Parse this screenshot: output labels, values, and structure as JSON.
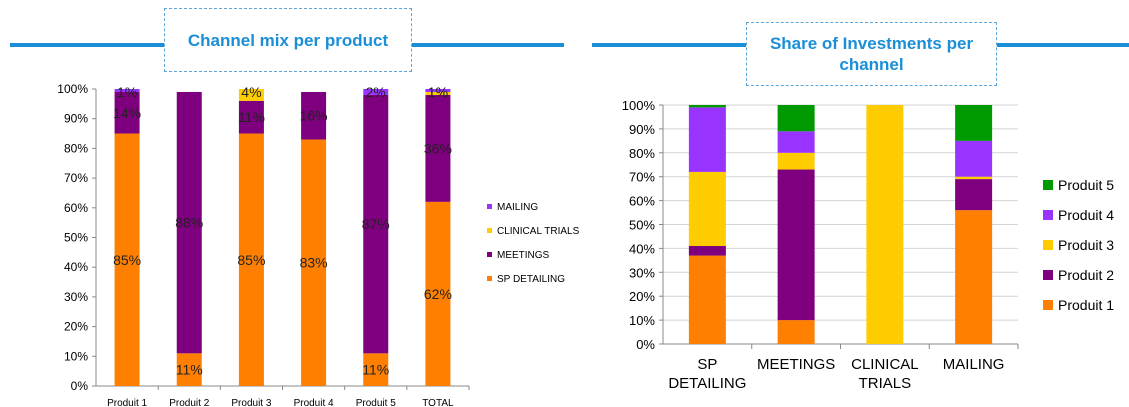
{
  "chart_data": [
    {
      "type": "bar",
      "stacked": true,
      "title": "Channel mix per product",
      "categories": [
        "Produit 1",
        "Produit 2",
        "Produit 3",
        "Produit 4",
        "Produit 5",
        "TOTAL"
      ],
      "ylim": [
        0,
        100
      ],
      "yticks": [
        "0%",
        "10%",
        "20%",
        "30%",
        "40%",
        "50%",
        "60%",
        "70%",
        "80%",
        "90%",
        "100%"
      ],
      "legend_position": "right",
      "grid": false,
      "series": [
        {
          "name": "SP DETAILING",
          "color": "#ff8000",
          "values": [
            85,
            11,
            85,
            83,
            11,
            62
          ],
          "labels": [
            "85%",
            "11%",
            "85%",
            "83%",
            "11%",
            "62%"
          ]
        },
        {
          "name": "MEETINGS",
          "color": "#7f007f",
          "values": [
            14,
            88,
            11,
            16,
            87,
            36
          ],
          "labels": [
            "14%",
            "88%",
            "11%",
            "16%",
            "87%",
            "36%"
          ]
        },
        {
          "name": "CLINICAL TRIALS",
          "color": "#ffcc00",
          "values": [
            0,
            0,
            4,
            0,
            0,
            1
          ],
          "labels": [
            "",
            "",
            "4%",
            "",
            "",
            "1%"
          ]
        },
        {
          "name": "MAILING",
          "color": "#9933ff",
          "values": [
            1,
            0,
            0,
            0,
            2,
            1
          ],
          "labels": [
            "1%",
            "",
            "",
            "",
            "2%",
            "1%"
          ]
        }
      ]
    },
    {
      "type": "bar",
      "stacked": true,
      "title": "Share of Investments per channel",
      "categories": [
        "SP DETAILING",
        "MEETINGS",
        "CLINICAL TRIALS",
        "MAILING"
      ],
      "ylim": [
        0,
        100
      ],
      "yticks": [
        "0%",
        "10%",
        "20%",
        "30%",
        "40%",
        "50%",
        "60%",
        "70%",
        "80%",
        "90%",
        "100%"
      ],
      "legend_position": "right",
      "grid": true,
      "series": [
        {
          "name": "Produit 1",
          "color": "#ff8000",
          "values": [
            37,
            10,
            0,
            56
          ]
        },
        {
          "name": "Produit 2",
          "color": "#7f007f",
          "values": [
            4,
            63,
            0,
            13
          ]
        },
        {
          "name": "Produit 3",
          "color": "#ffcc00",
          "values": [
            31,
            7,
            100,
            1
          ]
        },
        {
          "name": "Produit 4",
          "color": "#9933ff",
          "values": [
            27,
            9,
            0,
            15
          ]
        },
        {
          "name": "Produit 5",
          "color": "#009900",
          "values": [
            1,
            11,
            0,
            15
          ]
        }
      ]
    }
  ]
}
